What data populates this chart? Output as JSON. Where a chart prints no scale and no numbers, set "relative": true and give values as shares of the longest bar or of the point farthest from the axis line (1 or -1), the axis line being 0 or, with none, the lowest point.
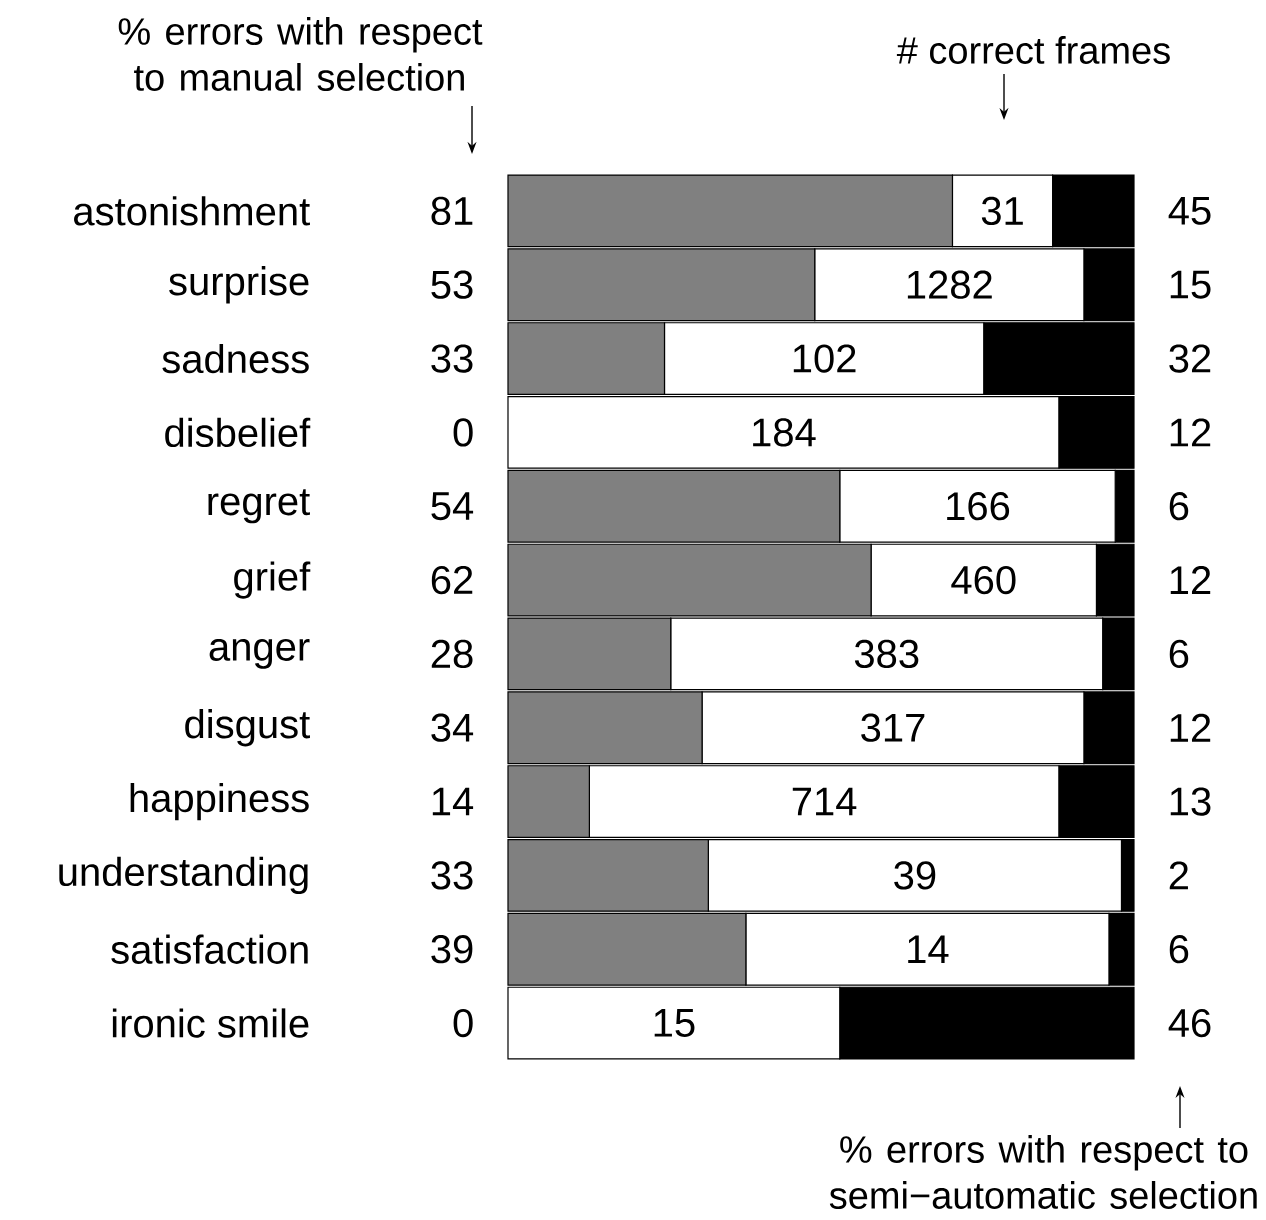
{
  "chart_data": {
    "type": "bar",
    "orientation": "horizontal",
    "stacked": true,
    "relative": true,
    "categories": [
      "astonishment",
      "surprise",
      "sadness",
      "disbelief",
      "regret",
      "grief",
      "anger",
      "disgust",
      "happiness",
      "understanding",
      "satisfaction",
      "ironic smile"
    ],
    "series": [
      {
        "color": "#808080",
        "values": [
          0.71,
          0.49,
          0.25,
          0,
          0.53,
          0.58,
          0.26,
          0.31,
          0.13,
          0.32,
          0.38,
          0
        ]
      },
      {
        "color": "#ffffff",
        "values": [
          0.16,
          0.43,
          0.51,
          0.88,
          0.44,
          0.36,
          0.69,
          0.61,
          0.75,
          0.66,
          0.58,
          0.53
        ]
      },
      {
        "color": "#000000",
        "values": [
          0.13,
          0.08,
          0.24,
          0.12,
          0.03,
          0.06,
          0.05,
          0.08,
          0.12,
          0.02,
          0.04,
          0.47
        ]
      }
    ],
    "annotations": [
      "% errors with respect to manual selection",
      "# correct frames",
      "% errors with respect to semi−automatic selection",
      "81",
      {
        "text": "31",
        "y": "astonishment"
      },
      "45",
      "53",
      {
        "text": "1282",
        "y": "surprise"
      },
      "15",
      "33",
      {
        "text": "102",
        "y": "sadness"
      },
      "32",
      "0",
      {
        "text": "184",
        "y": "disbelief"
      },
      "12",
      "54",
      {
        "text": "166",
        "y": "regret"
      },
      "6",
      "62",
      {
        "text": "460",
        "y": "grief"
      },
      "12",
      "28",
      {
        "text": "383",
        "y": "anger"
      },
      "6",
      "34",
      {
        "text": "317",
        "y": "disgust"
      },
      "12",
      "14",
      {
        "text": "714",
        "y": "happiness"
      },
      "13",
      "33",
      {
        "text": "39",
        "y": "understanding"
      },
      "2",
      "39",
      {
        "text": "14",
        "y": "satisfaction"
      },
      "6",
      "0",
      {
        "text": "15",
        "y": "ironic smile"
      },
      "46"
    ]
  }
}
